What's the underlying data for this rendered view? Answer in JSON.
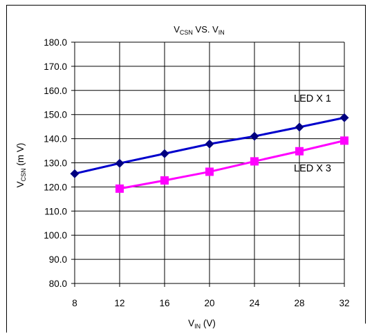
{
  "chart_data": {
    "type": "line",
    "title": {
      "main": "V",
      "sub1": "CSN",
      "mid": " VS. V",
      "sub2": "IN"
    },
    "xlabel": {
      "main": "V",
      "sub": "IN",
      "tail": " (V)"
    },
    "ylabel": {
      "main": "V",
      "sub": "CSN",
      "tail": " (m V)"
    },
    "xlim": [
      8,
      32
    ],
    "ylim": [
      80,
      180
    ],
    "xticks": [
      8,
      12,
      16,
      20,
      24,
      28,
      32
    ],
    "xtick_labels": [
      "8",
      "12",
      "16",
      "20",
      "24",
      "28",
      "32"
    ],
    "yticks": [
      80,
      90,
      100,
      110,
      120,
      130,
      140,
      150,
      160,
      170,
      180
    ],
    "ytick_labels": [
      "80.0",
      "90.0",
      "100.0",
      "110.0",
      "120.0",
      "130.0",
      "140.0",
      "150.0",
      "160.0",
      "170.0",
      "180.0"
    ],
    "grid": true,
    "series": [
      {
        "name": "LED X 1",
        "color": "#0000cc",
        "marker": "diamond",
        "x": [
          8,
          12,
          16,
          20,
          24,
          28,
          32
        ],
        "y": [
          125.5,
          129.8,
          133.8,
          137.8,
          141.0,
          144.8,
          148.7
        ]
      },
      {
        "name": "LED X 3",
        "color": "#ff00ff",
        "marker": "square",
        "x": [
          12,
          16,
          20,
          24,
          28,
          32
        ],
        "y": [
          119.3,
          122.7,
          126.3,
          130.6,
          134.8,
          139.2
        ]
      }
    ]
  }
}
